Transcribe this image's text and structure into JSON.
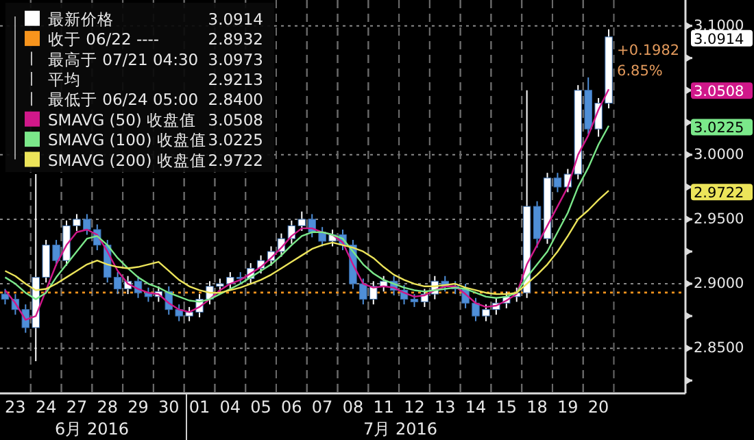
{
  "chart_data": {
    "type": "candlestick",
    "categories": [
      null,
      "23",
      null,
      null,
      "24",
      null,
      null,
      "27",
      null,
      null,
      "28",
      null,
      null,
      "29",
      null,
      null,
      "30",
      null,
      null,
      "01",
      null,
      null,
      "04",
      null,
      null,
      "05",
      null,
      null,
      "06",
      null,
      null,
      "07",
      null,
      null,
      "08",
      null,
      null,
      "11",
      null,
      null,
      "12",
      null,
      null,
      "13",
      null,
      null,
      "14",
      null,
      null,
      "15",
      null,
      null,
      "18",
      null,
      null,
      "19",
      null,
      null,
      "20",
      null,
      null,
      null,
      null,
      null,
      null,
      null,
      null
    ],
    "series": [
      {
        "name": "最新价格",
        "type": "candlestick",
        "color": "#ffffff",
        "colors": [
          "#4f8fd8",
          "#4f8fd8",
          "#4f8fd8",
          "#ffffff",
          "#ffffff",
          "#4f8fd8",
          "#ffffff",
          "#ffffff",
          "#4f8fd8",
          "#4f8fd8",
          "#4f8fd8",
          "#4f8fd8",
          "#ffffff",
          "#4f8fd8",
          "#4f8fd8",
          "#ffffff",
          "#4f8fd8",
          "#4f8fd8",
          "#ffffff",
          "#ffffff",
          "#ffffff",
          "#ffffff",
          "#ffffff",
          "#4f8fd8",
          "#ffffff",
          "#ffffff",
          "#ffffff",
          "#ffffff",
          "#ffffff",
          "#ffffff",
          "#4f8fd8",
          "#4f8fd8",
          "#ffffff",
          "#4f8fd8",
          "#4f8fd8",
          "#4f8fd8",
          "#ffffff",
          "#ffffff",
          "#4f8fd8",
          "#4f8fd8",
          "#4f8fd8",
          "#ffffff",
          "#ffffff",
          "#4f8fd8",
          "#4f8fd8",
          "#4f8fd8",
          "#4f8fd8",
          "#ffffff",
          "#ffffff",
          "#ffffff",
          "#ffffff",
          "#ffffff",
          "#4f8fd8",
          "#ffffff",
          "#4f8fd8",
          "#ffffff",
          "#ffffff",
          "#4f8fd8",
          "#ffffff",
          "#ffffff",
          null,
          null,
          null,
          null,
          null,
          null,
          null
        ],
        "ohlc": [
          [
            2.892,
            2.896,
            2.884,
            2.888
          ],
          [
            2.888,
            2.892,
            2.876,
            2.88
          ],
          [
            2.88,
            2.884,
            2.862,
            2.866
          ],
          [
            2.866,
            2.985,
            2.84,
            2.905
          ],
          [
            2.905,
            2.934,
            2.901,
            2.93
          ],
          [
            2.93,
            2.934,
            2.914,
            2.918
          ],
          [
            2.918,
            2.949,
            2.914,
            2.945
          ],
          [
            2.945,
            2.954,
            2.941,
            2.95
          ],
          [
            2.95,
            2.954,
            2.938,
            2.942
          ],
          [
            2.942,
            2.946,
            2.926,
            2.93
          ],
          [
            2.93,
            2.934,
            2.901,
            2.905
          ],
          [
            2.905,
            2.909,
            2.892,
            2.896
          ],
          [
            2.896,
            2.906,
            2.892,
            2.902
          ],
          [
            2.902,
            2.906,
            2.889,
            2.893
          ],
          [
            2.893,
            2.897,
            2.886,
            2.89
          ],
          [
            2.89,
            2.898,
            2.886,
            2.894
          ],
          [
            2.894,
            2.898,
            2.876,
            2.88
          ],
          [
            2.88,
            2.884,
            2.871,
            2.875
          ],
          [
            2.875,
            2.882,
            2.871,
            2.878
          ],
          [
            2.878,
            2.892,
            2.874,
            2.888
          ],
          [
            2.888,
            2.902,
            2.884,
            2.898
          ],
          [
            2.898,
            2.904,
            2.894,
            2.9
          ],
          [
            2.9,
            2.909,
            2.896,
            2.905
          ],
          [
            2.905,
            2.909,
            2.9,
            2.904
          ],
          [
            2.904,
            2.916,
            2.9,
            2.912
          ],
          [
            2.912,
            2.922,
            2.908,
            2.918
          ],
          [
            2.918,
            2.929,
            2.914,
            2.925
          ],
          [
            2.925,
            2.939,
            2.921,
            2.935
          ],
          [
            2.935,
            2.949,
            2.931,
            2.945
          ],
          [
            2.945,
            2.956,
            2.941,
            2.95
          ],
          [
            2.95,
            2.954,
            2.936,
            2.94
          ],
          [
            2.94,
            2.944,
            2.929,
            2.933
          ],
          [
            2.933,
            2.942,
            2.929,
            2.938
          ],
          [
            2.938,
            2.942,
            2.926,
            2.93
          ],
          [
            2.93,
            2.934,
            2.896,
            2.9
          ],
          [
            2.9,
            2.904,
            2.884,
            2.888
          ],
          [
            2.888,
            2.902,
            2.884,
            2.898
          ],
          [
            2.898,
            2.906,
            2.894,
            2.902
          ],
          [
            2.902,
            2.906,
            2.891,
            2.895
          ],
          [
            2.895,
            2.899,
            2.884,
            2.888
          ],
          [
            2.888,
            2.892,
            2.882,
            2.886
          ],
          [
            2.886,
            2.896,
            2.882,
            2.892
          ],
          [
            2.892,
            2.906,
            2.888,
            2.902
          ],
          [
            2.902,
            2.906,
            2.894,
            2.898
          ],
          [
            2.898,
            2.902,
            2.892,
            2.896
          ],
          [
            2.896,
            2.9,
            2.881,
            2.885
          ],
          [
            2.885,
            2.889,
            2.871,
            2.875
          ],
          [
            2.875,
            2.884,
            2.871,
            2.88
          ],
          [
            2.88,
            2.889,
            2.876,
            2.885
          ],
          [
            2.885,
            2.894,
            2.881,
            2.89
          ],
          [
            2.89,
            2.897,
            2.886,
            2.893
          ],
          [
            2.893,
            3.05,
            2.889,
            2.96
          ],
          [
            2.96,
            2.964,
            2.928,
            2.935
          ],
          [
            2.935,
            2.986,
            2.931,
            2.982
          ],
          [
            2.982,
            2.986,
            2.971,
            2.975
          ],
          [
            2.975,
            2.989,
            2.971,
            2.985
          ],
          [
            2.985,
            3.054,
            2.981,
            3.05
          ],
          [
            3.05,
            3.06,
            3.016,
            3.02
          ],
          [
            3.02,
            3.044,
            3.014,
            3.04
          ],
          [
            3.04,
            3.0973,
            3.036,
            3.0914
          ],
          null,
          null,
          null,
          null,
          null,
          null,
          null
        ]
      },
      {
        "name": "SMAVG (50) 收盘值",
        "type": "line",
        "color": "#d0188a",
        "values": [
          2.895,
          2.885,
          2.872,
          2.875,
          2.895,
          2.915,
          2.93,
          2.94,
          2.942,
          2.938,
          2.925,
          2.91,
          2.9,
          2.896,
          2.893,
          2.892,
          2.885,
          2.88,
          2.878,
          2.882,
          2.888,
          2.895,
          2.9,
          2.903,
          2.908,
          2.913,
          2.92,
          2.928,
          2.937,
          2.943,
          2.943,
          2.94,
          2.938,
          2.932,
          2.915,
          2.9,
          2.897,
          2.898,
          2.897,
          2.893,
          2.89,
          2.891,
          2.895,
          2.898,
          2.898,
          2.892,
          2.885,
          2.882,
          2.883,
          2.887,
          2.892,
          2.915,
          2.93,
          2.945,
          2.96,
          2.975,
          3.0,
          3.015,
          3.035,
          3.0508,
          null,
          null,
          null,
          null,
          null,
          null,
          null
        ]
      },
      {
        "name": "SMAVG (100) 收盘值",
        "type": "line",
        "color": "#7be88a",
        "values": [
          2.905,
          2.9,
          2.893,
          2.888,
          2.893,
          2.905,
          2.915,
          2.925,
          2.935,
          2.937,
          2.93,
          2.92,
          2.912,
          2.905,
          2.9,
          2.897,
          2.893,
          2.89,
          2.887,
          2.886,
          2.888,
          2.892,
          2.896,
          2.9,
          2.905,
          2.91,
          2.915,
          2.922,
          2.93,
          2.937,
          2.94,
          2.94,
          2.938,
          2.935,
          2.925,
          2.915,
          2.908,
          2.903,
          2.9,
          2.897,
          2.895,
          2.894,
          2.895,
          2.896,
          2.897,
          2.896,
          2.893,
          2.89,
          2.889,
          2.89,
          2.893,
          2.905,
          2.915,
          2.925,
          2.94,
          2.955,
          2.975,
          2.99,
          3.008,
          3.0225,
          null,
          null,
          null,
          null,
          null,
          null,
          null
        ]
      },
      {
        "name": "SMAVG (200) 收盘值",
        "type": "line",
        "color": "#ece45a",
        "values": [
          2.91,
          2.906,
          2.9,
          2.895,
          2.896,
          2.9,
          2.905,
          2.91,
          2.915,
          2.918,
          2.915,
          2.913,
          2.912,
          2.913,
          2.915,
          2.917,
          2.91,
          2.903,
          2.898,
          2.895,
          2.893,
          2.893,
          2.895,
          2.897,
          2.9,
          2.903,
          2.907,
          2.912,
          2.917,
          2.922,
          2.927,
          2.93,
          2.932,
          2.93,
          2.928,
          2.925,
          2.92,
          2.913,
          2.907,
          2.903,
          2.9,
          2.898,
          2.898,
          2.899,
          2.9,
          2.897,
          2.895,
          2.893,
          2.892,
          2.892,
          2.893,
          2.9,
          2.907,
          2.915,
          2.925,
          2.937,
          2.95,
          2.957,
          2.965,
          2.9722,
          null,
          null,
          null,
          null,
          null,
          null,
          null
        ]
      }
    ],
    "ylim": [
      2.815,
      3.12
    ],
    "yticks": [
      {
        "value": 2.825,
        "label": null
      },
      {
        "value": 2.85,
        "label": "2.8500"
      },
      {
        "value": 2.875,
        "label": null
      },
      {
        "value": 2.9,
        "label": "2.9000"
      },
      {
        "value": 2.925,
        "label": null
      },
      {
        "value": 2.95,
        "label": "2.9500"
      },
      {
        "value": 2.975,
        "label": null
      },
      {
        "value": 3.0,
        "label": "3.0000"
      },
      {
        "value": 3.025,
        "label": null
      },
      {
        "value": 3.05,
        "label": null
      },
      {
        "value": 3.075,
        "label": null
      },
      {
        "value": 3.1,
        "label": "3.1000"
      }
    ],
    "ref_lines": [
      {
        "axis": "y",
        "value": 2.8932,
        "label": "收于 06/22 ----",
        "color": "#f7941d",
        "line_style": "dotted"
      }
    ],
    "grid": true,
    "legend": "top left",
    "annotations": [
      "3.0914",
      "2.8932",
      "最高于 07/21 04:30",
      "3.0973",
      "平均",
      "2.9213",
      "最低于 06/24 05:00",
      "2.8400",
      "3.0508",
      "3.0225",
      "2.9722",
      "3.0914",
      "3.0508",
      "3.0225",
      "2.9722",
      "+0.1982",
      "6.85%",
      "6月 2016",
      "7月 2016"
    ]
  }
}
